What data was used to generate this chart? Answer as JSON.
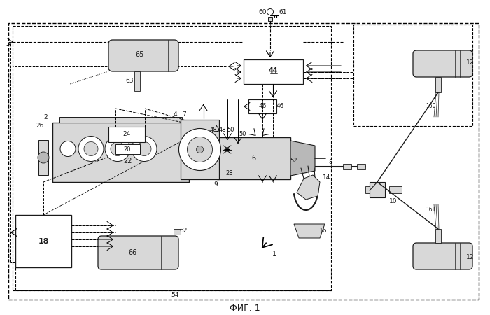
{
  "title": "ФИГ. 1",
  "bg": "#ffffff",
  "lc": "#1a1a1a",
  "gray_light": "#d8d8d8",
  "gray_mid": "#b8b8b8",
  "gray_dark": "#888888"
}
